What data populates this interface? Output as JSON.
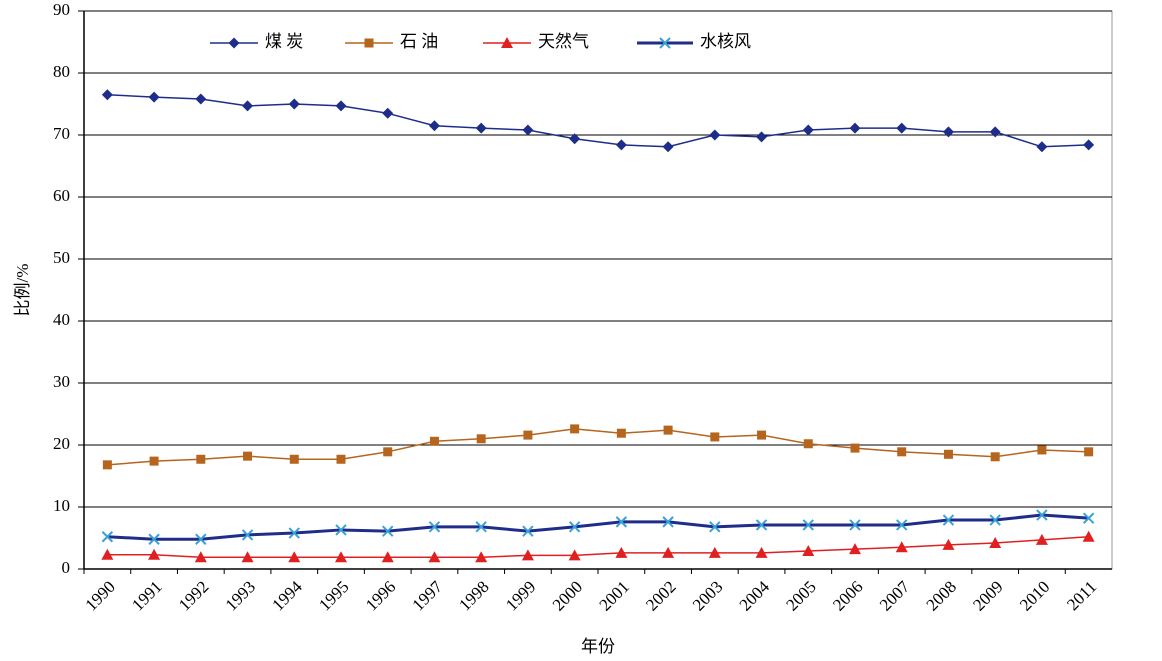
{
  "chart_data": {
    "type": "line",
    "x_label": "年份",
    "y_label": "比例/%",
    "categories": [
      "1990",
      "1991",
      "1992",
      "1993",
      "1994",
      "1995",
      "1996",
      "1997",
      "1998",
      "1999",
      "2000",
      "2001",
      "2002",
      "2003",
      "2004",
      "2005",
      "2006",
      "2007",
      "2008",
      "2009",
      "2010",
      "2011"
    ],
    "series": [
      {
        "name": "煤 炭",
        "color": "#1f2d8a",
        "marker": "diamond",
        "line_width": 1.5,
        "values": [
          76.5,
          76.1,
          75.8,
          74.7,
          75.0,
          74.7,
          73.5,
          71.5,
          71.1,
          70.8,
          69.4,
          68.4,
          68.1,
          70.0,
          69.7,
          70.8,
          71.1,
          71.1,
          70.5,
          70.5,
          68.1,
          68.4
        ]
      },
      {
        "name": "石 油",
        "color": "#b5651d",
        "marker": "square",
        "line_width": 1.5,
        "values": [
          16.8,
          17.4,
          17.7,
          18.2,
          17.7,
          17.7,
          18.9,
          20.6,
          21.0,
          21.6,
          22.6,
          21.9,
          22.4,
          21.3,
          21.6,
          20.2,
          19.5,
          18.9,
          18.5,
          18.1,
          19.2,
          18.9
        ]
      },
      {
        "name": "天然气",
        "color": "#e02020",
        "marker": "triangle",
        "line_width": 1.5,
        "values": [
          2.3,
          2.3,
          1.9,
          1.9,
          1.9,
          1.9,
          1.9,
          1.9,
          1.9,
          2.2,
          2.2,
          2.6,
          2.6,
          2.6,
          2.6,
          2.9,
          3.2,
          3.5,
          3.9,
          4.2,
          4.7,
          5.2
        ]
      },
      {
        "name": "水核风",
        "color": "#1f2d8a",
        "marker": "x",
        "marker_color": "#3aa0d8",
        "line_width": 3,
        "values": [
          5.2,
          4.8,
          4.8,
          5.5,
          5.8,
          6.3,
          6.1,
          6.8,
          6.8,
          6.1,
          6.8,
          7.6,
          7.6,
          6.8,
          7.1,
          7.1,
          7.1,
          7.1,
          7.9,
          7.9,
          8.7,
          8.2
        ]
      }
    ],
    "ylim": [
      0,
      90
    ],
    "yticks": [
      0,
      10,
      20,
      30,
      40,
      50,
      60,
      70,
      80,
      90
    ],
    "grid": true
  }
}
